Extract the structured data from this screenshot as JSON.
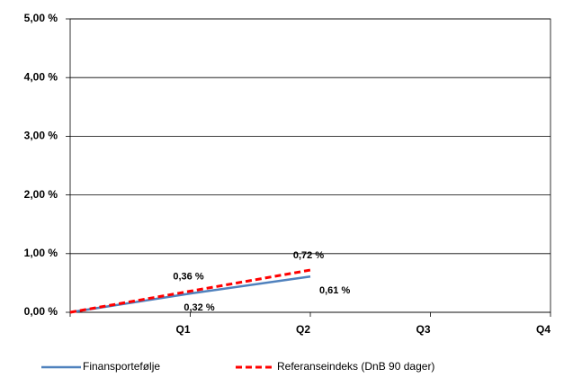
{
  "chart_data": {
    "type": "line",
    "categories": [
      null,
      "Q1",
      "Q2",
      "Q3",
      "Q4"
    ],
    "series": [
      {
        "name": "Finansportefølje",
        "color": "#4f81bd",
        "dash": false,
        "values": [
          0,
          0.32,
          0.61,
          null,
          null
        ],
        "value_labels": [
          null,
          "0,32 %",
          "0,61 %",
          null,
          null
        ]
      },
      {
        "name": "Referanseindeks (DnB 90 dager)",
        "color": "#ff0000",
        "dash": true,
        "values": [
          0,
          0.36,
          0.72,
          null,
          null
        ],
        "value_labels": [
          null,
          "0,36 %",
          "0,72 %",
          null,
          null
        ]
      }
    ],
    "ylim": [
      0,
      5
    ],
    "yticks": [
      {
        "value": 0,
        "label": "0,00 %"
      },
      {
        "value": 1,
        "label": "1,00 %"
      },
      {
        "value": 2,
        "label": "2,00 %"
      },
      {
        "value": 3,
        "label": "3,00 %"
      },
      {
        "value": 4,
        "label": "4,00 %"
      },
      {
        "value": 5,
        "label": "5,00 %"
      }
    ],
    "grid": true,
    "legend": "bottom"
  }
}
